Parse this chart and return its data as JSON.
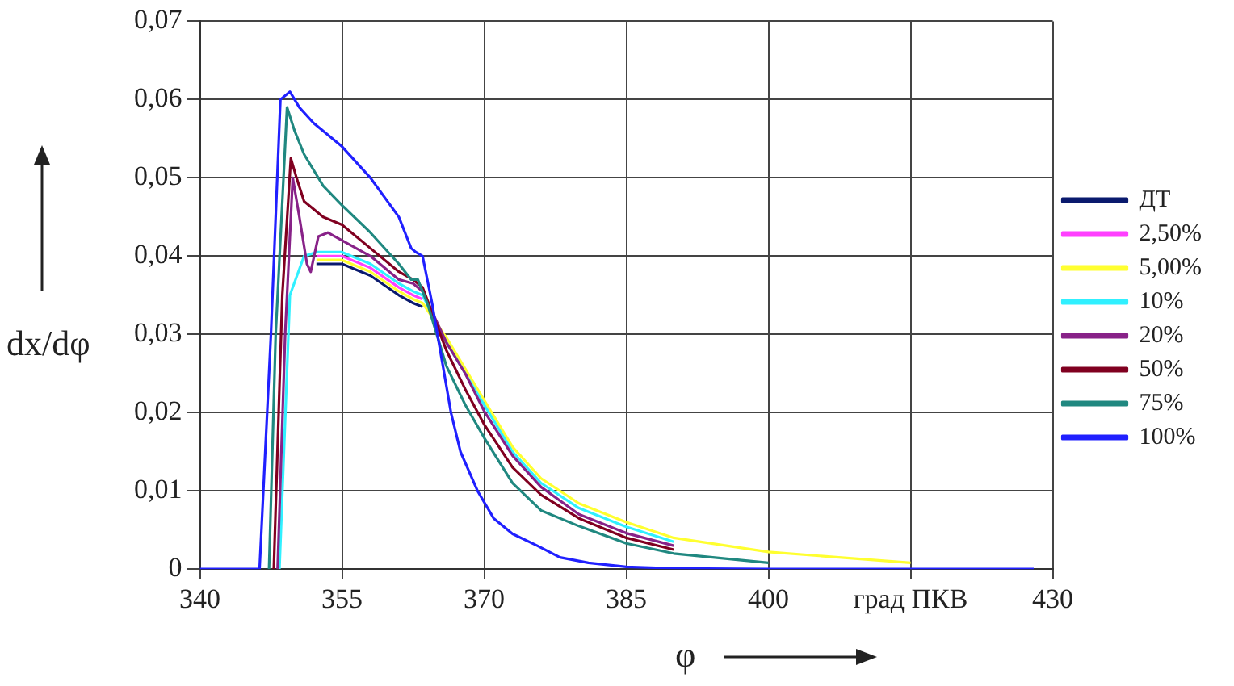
{
  "chart_data": {
    "type": "line",
    "xlabel": "φ",
    "ylabel": "dx/dφ",
    "xlim": [
      340,
      430
    ],
    "xticks": [
      340,
      355,
      370,
      385,
      400,
      {
        "value": 415,
        "label": "град ПКВ"
      },
      430
    ],
    "ylim": [
      0,
      0.07
    ],
    "yticks": [
      {
        "value": 0,
        "label": "0"
      },
      {
        "value": 0.01,
        "label": "0,01"
      },
      {
        "value": 0.02,
        "label": "0,02"
      },
      {
        "value": 0.03,
        "label": "0,03"
      },
      {
        "value": 0.04,
        "label": "0,04"
      },
      {
        "value": 0.05,
        "label": "0,05"
      },
      {
        "value": 0.06,
        "label": "0,06"
      },
      {
        "value": 0.07,
        "label": "0,07"
      }
    ],
    "grid": true,
    "legend": "right",
    "marker": "none",
    "line_style": "solid",
    "series": [
      {
        "name": "ДТ",
        "color": "#0a1a6e",
        "x": [
          352.3,
          355,
          358,
          361,
          362.5,
          363.5
        ],
        "values": [
          0.039,
          0.039,
          0.0375,
          0.035,
          0.034,
          0.0335
        ]
      },
      {
        "name": "2,50%",
        "color": "#ff40ff",
        "x": [
          352.3,
          355,
          358,
          361,
          362.5,
          363.5
        ],
        "values": [
          0.04,
          0.04,
          0.0385,
          0.036,
          0.035,
          0.0345
        ]
      },
      {
        "name": "5,00%",
        "color": "#ffff30",
        "x": [
          352.3,
          355,
          358,
          361,
          362.5,
          363.5,
          366,
          368,
          370,
          373,
          376,
          380,
          385,
          390,
          400,
          415
        ],
        "values": [
          0.0395,
          0.0395,
          0.038,
          0.0355,
          0.0345,
          0.034,
          0.0296,
          0.0256,
          0.0216,
          0.0156,
          0.0116,
          0.0084,
          0.006,
          0.004,
          0.0022,
          0.0008
        ]
      },
      {
        "name": "10%",
        "color": "#30f0ff",
        "x": [
          348.4,
          349.5,
          351,
          352.3,
          355,
          358,
          361,
          362.5,
          363.5,
          366,
          368,
          370,
          373,
          376,
          380,
          385,
          390
        ],
        "values": [
          0,
          0.035,
          0.04,
          0.0405,
          0.0405,
          0.039,
          0.0365,
          0.0355,
          0.035,
          0.029,
          0.025,
          0.021,
          0.015,
          0.011,
          0.0078,
          0.0054,
          0.0035
        ]
      },
      {
        "name": "20%",
        "color": "#882288",
        "x": [
          348.2,
          349,
          349.8,
          350.5,
          351.3,
          351.7,
          352.5,
          353.5,
          355,
          358,
          361,
          362.5,
          363.5,
          366,
          368,
          370,
          373,
          376,
          380,
          385,
          390
        ],
        "values": [
          0,
          0.03,
          0.05,
          0.045,
          0.039,
          0.038,
          0.0425,
          0.043,
          0.042,
          0.04,
          0.037,
          0.0365,
          0.0355,
          0.029,
          0.025,
          0.0202,
          0.0145,
          0.0105,
          0.007,
          0.0046,
          0.003
        ]
      },
      {
        "name": "50%",
        "color": "#800020",
        "x": [
          347.8,
          348.7,
          349.6,
          350.2,
          351,
          353,
          355,
          358,
          361,
          362.5,
          363.5,
          366,
          368,
          370,
          373,
          376,
          380,
          385,
          390
        ],
        "values": [
          0,
          0.035,
          0.0525,
          0.05,
          0.047,
          0.045,
          0.044,
          0.041,
          0.038,
          0.037,
          0.036,
          0.028,
          0.023,
          0.0185,
          0.013,
          0.0095,
          0.0065,
          0.004,
          0.0025
        ]
      },
      {
        "name": "75%",
        "color": "#208880",
        "x": [
          347.3,
          348,
          349.2,
          350,
          351,
          353,
          355,
          358,
          361,
          362.3,
          363,
          364,
          366,
          368,
          370,
          373,
          376,
          380,
          385,
          390,
          400
        ],
        "values": [
          0,
          0.03,
          0.059,
          0.056,
          0.053,
          0.049,
          0.0465,
          0.043,
          0.039,
          0.037,
          0.037,
          0.034,
          0.026,
          0.021,
          0.0168,
          0.011,
          0.0075,
          0.0055,
          0.0033,
          0.002,
          0.0008
        ]
      },
      {
        "name": "100%",
        "color": "#2020ff",
        "x": [
          340,
          346.3,
          347.5,
          348.5,
          349.5,
          350.5,
          352,
          355,
          358,
          361,
          362.3,
          362.8,
          363.5,
          364.5,
          365.5,
          366.5,
          367.5,
          369.3,
          371,
          373,
          375.6,
          378,
          381,
          385,
          390,
          400,
          428
        ],
        "values": [
          0,
          0,
          0.03,
          0.06,
          0.061,
          0.059,
          0.057,
          0.054,
          0.05,
          0.045,
          0.041,
          0.0405,
          0.04,
          0.034,
          0.027,
          0.02,
          0.015,
          0.01,
          0.0065,
          0.0045,
          0.003,
          0.0015,
          0.0008,
          0.0003,
          0.0001,
          0,
          0
        ]
      }
    ]
  }
}
